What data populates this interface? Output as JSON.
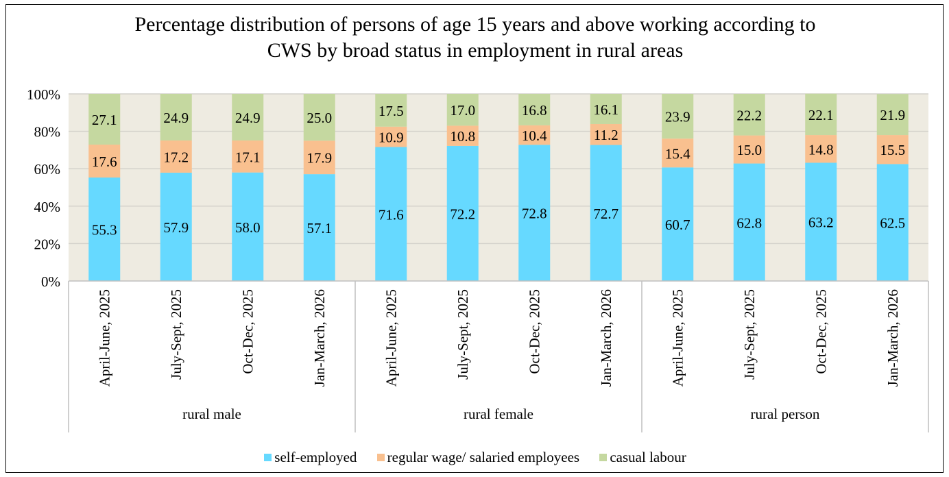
{
  "chart_data": {
    "type": "bar",
    "stacked": true,
    "title": "Percentage distribution of persons of age 15 years and above working according to CWS by broad status in employment in rural areas",
    "title_lines": [
      "Percentage distribution of persons of age 15 years and above working according to",
      "CWS by broad status in employment in rural areas"
    ],
    "groups": [
      {
        "label": "rural male",
        "categories": [
          "April-June, 2025",
          "July-Sept, 2025",
          "Oct-Dec, 2025",
          "Jan-March, 2026"
        ]
      },
      {
        "label": "rural female",
        "categories": [
          "April-June, 2025",
          "July-Sept, 2025",
          "Oct-Dec, 2025",
          "Jan-March, 2026"
        ]
      },
      {
        "label": "rural person",
        "categories": [
          "April-June, 2025",
          "July-Sept, 2025",
          "Oct-Dec, 2025",
          "Jan-March, 2026"
        ]
      }
    ],
    "series": [
      {
        "name": "self-employed",
        "color": "#66d9ff",
        "values": [
          55.3,
          57.9,
          58.0,
          57.1,
          71.6,
          72.2,
          72.8,
          72.7,
          60.7,
          62.8,
          63.2,
          62.5
        ]
      },
      {
        "name": "regular wage/ salaried employees",
        "color": "#f9c08f",
        "values": [
          17.6,
          17.2,
          17.1,
          17.9,
          10.9,
          10.8,
          10.4,
          11.2,
          15.4,
          15.0,
          14.8,
          15.5
        ]
      },
      {
        "name": "casual labour",
        "color": "#c5d8a0",
        "values": [
          27.1,
          24.9,
          24.9,
          25.0,
          17.5,
          17.0,
          16.8,
          16.1,
          23.9,
          22.2,
          22.1,
          21.9
        ]
      }
    ],
    "y_ticks": [
      "0%",
      "20%",
      "40%",
      "60%",
      "80%",
      "100%"
    ],
    "ylim": [
      0,
      100
    ],
    "grid": true,
    "plot_background": "#eeebe1",
    "legend_position": "bottom"
  }
}
